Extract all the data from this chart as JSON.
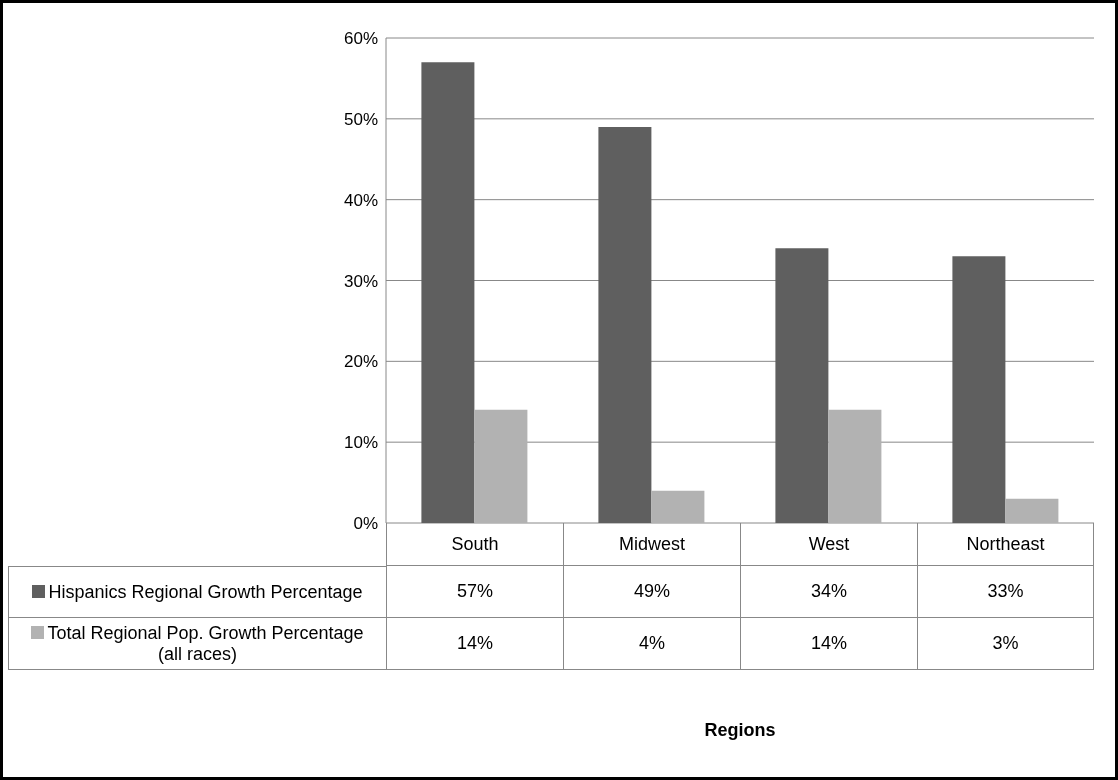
{
  "chart_data": {
    "type": "bar",
    "annotations": [
      "Regions"
    ],
    "categories": [
      "South",
      "Midwest",
      "West",
      "Northeast"
    ],
    "series": [
      {
        "name": "Hispanics Regional Growth Percentage",
        "color": "#5f5f5f",
        "values": [
          57,
          49,
          34,
          33
        ],
        "value_labels": [
          "57%",
          "49%",
          "34%",
          "33%"
        ]
      },
      {
        "name": "Total Regional Pop. Growth Percentage (all races)",
        "color": "#b2b2b2",
        "values": [
          14,
          4,
          14,
          3
        ],
        "value_labels": [
          "14%",
          "4%",
          "14%",
          "3%"
        ]
      }
    ],
    "ylim": [
      0,
      60
    ],
    "yticks": [
      {
        "value": 0,
        "label": "0%"
      },
      {
        "value": 10,
        "label": "10%"
      },
      {
        "value": 20,
        "label": "20%"
      },
      {
        "value": 30,
        "label": "30%"
      },
      {
        "value": 40,
        "label": "40%"
      },
      {
        "value": 50,
        "label": "50%"
      },
      {
        "value": 60,
        "label": "60%"
      }
    ],
    "grid": "y",
    "legend": "bottom"
  }
}
